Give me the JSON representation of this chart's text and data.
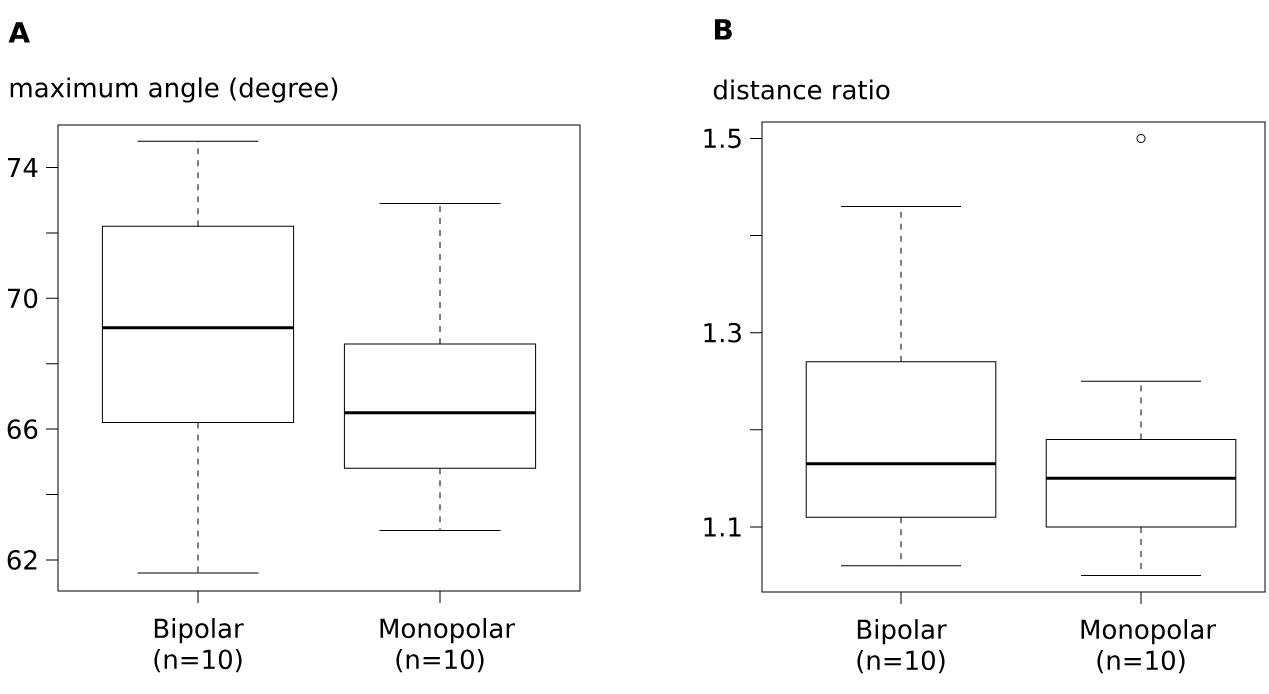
{
  "chart_data": [
    {
      "type": "box",
      "title": "A",
      "ylabel": "maximum angle (degree)",
      "categories": [
        "Bipolar (n=10)",
        "Monopolar (n=10)"
      ],
      "boxes": [
        {
          "low": 61.6,
          "q1": 66.2,
          "median": 69.1,
          "q3": 72.2,
          "high": 74.8
        },
        {
          "low": 62.9,
          "q1": 64.8,
          "median": 66.5,
          "q3": 68.6,
          "high": 72.9
        }
      ],
      "ylim": [
        61.05,
        75.3
      ],
      "yticks": [
        62,
        {
          "value": 64,
          "label": null
        },
        66,
        {
          "value": 68,
          "label": null
        },
        70,
        {
          "value": 72,
          "label": null
        },
        74
      ]
    },
    {
      "type": "box",
      "title": "B",
      "ylabel": "distance ratio",
      "categories": [
        "Bipolar (n=10)",
        "Monopolar (n=10)"
      ],
      "boxes": [
        {
          "low": 1.06,
          "q1": 1.11,
          "median": 1.165,
          "q3": 1.27,
          "high": 1.43
        },
        {
          "low": 1.05,
          "q1": 1.1,
          "median": 1.15,
          "q3": 1.19,
          "high": 1.25,
          "outliers": [
            1.5
          ]
        }
      ],
      "ylim": [
        1.033,
        1.517
      ],
      "yticks": [
        1.1,
        {
          "value": 1.2,
          "label": null
        },
        1.3,
        {
          "value": 1.4,
          "label": null
        },
        1.5
      ]
    }
  ]
}
